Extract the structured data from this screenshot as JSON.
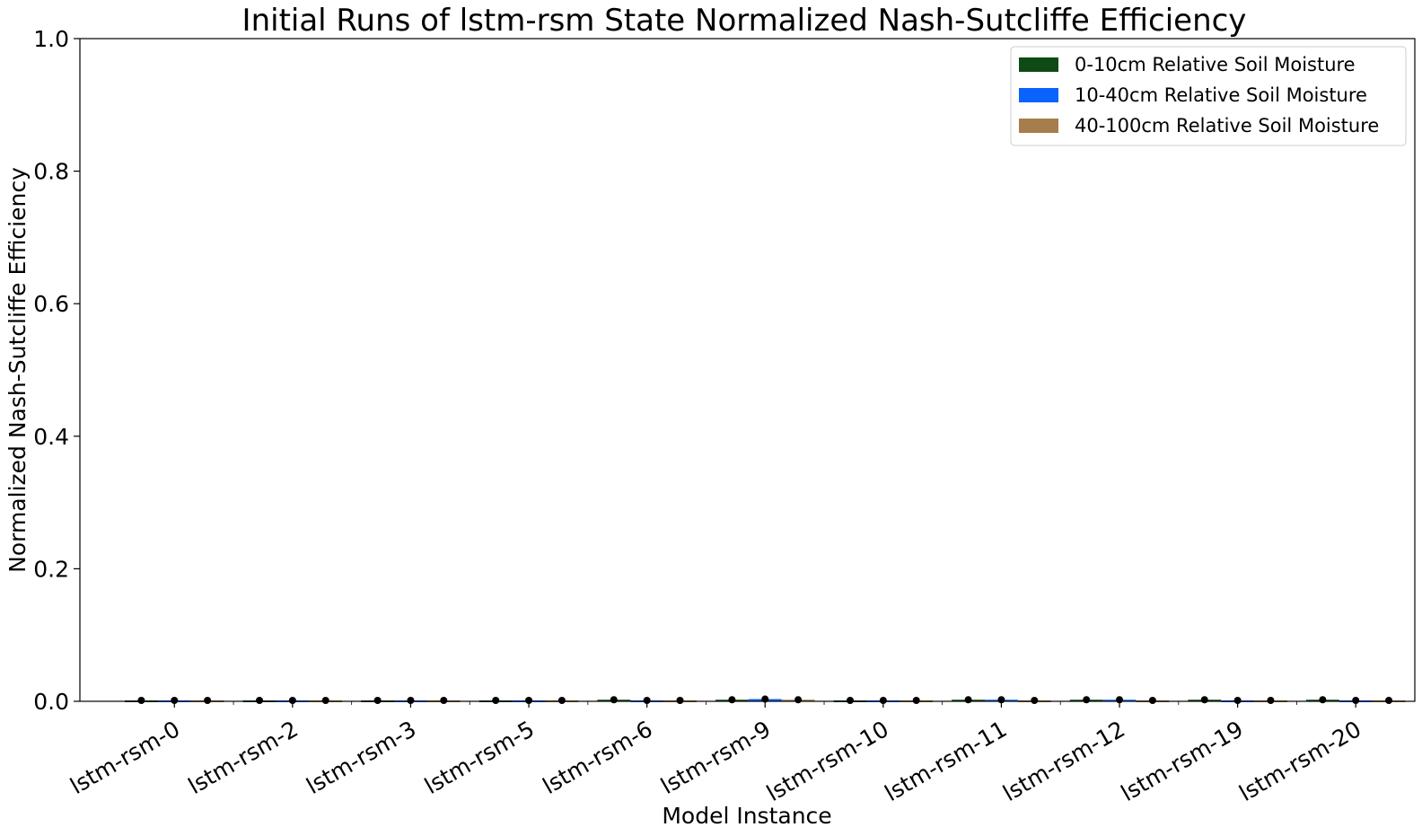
{
  "chart_data": {
    "type": "bar",
    "title": "Initial Runs of lstm-rsm State Normalized Nash-Sutcliffe Efficiency",
    "xlabel": "Model Instance",
    "ylabel": "Normalized Nash-Sutcliffe Efficiency",
    "ylim": [
      0.0,
      1.0
    ],
    "yticks": [
      "0.0",
      "0.2",
      "0.4",
      "0.6",
      "0.8",
      "1.0"
    ],
    "grid": false,
    "legend_position": "top-right",
    "categories": [
      "lstm-rsm-0",
      "lstm-rsm-2",
      "lstm-rsm-3",
      "lstm-rsm-5",
      "lstm-rsm-6",
      "lstm-rsm-9",
      "lstm-rsm-10",
      "lstm-rsm-11",
      "lstm-rsm-12",
      "lstm-rsm-19",
      "lstm-rsm-20"
    ],
    "series": [
      {
        "name": "0-10cm Relative Soil Moisture",
        "color": "#0d4a14",
        "values": [
          0.0,
          0.0,
          0.0,
          0.0,
          0.001,
          0.001,
          0.0,
          0.001,
          0.001,
          0.001,
          0.001
        ]
      },
      {
        "name": "10-40cm Relative Soil Moisture",
        "color": "#0a63ff",
        "values": [
          0.0,
          0.0,
          0.0,
          0.0,
          0.0,
          0.002,
          0.0,
          0.001,
          0.001,
          0.0,
          0.0
        ]
      },
      {
        "name": "40-100cm Relative Soil Moisture",
        "color": "#a87d4c",
        "values": [
          0.0,
          0.0,
          0.0,
          0.0,
          0.0,
          0.001,
          0.0,
          0.0,
          0.0,
          0.0,
          0.0
        ]
      }
    ]
  }
}
